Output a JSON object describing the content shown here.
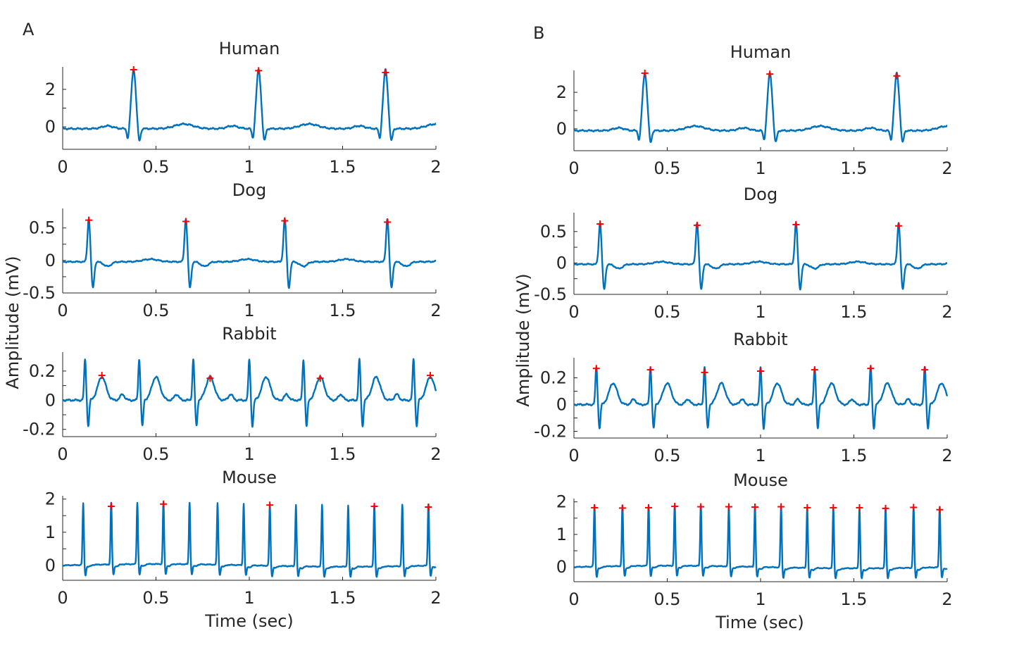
{
  "colors": {
    "trace": "#0072BD",
    "peak_marker": "#FF0000",
    "axes": "#262626"
  },
  "panels": [
    {
      "label": "A",
      "ylabel": "Amplitude (mV)",
      "xlabel": "Time (sec)"
    },
    {
      "label": "B",
      "ylabel": "Amplitude (mV)",
      "xlabel": "Time (sec)"
    }
  ],
  "chart_data": [
    {
      "type": "line",
      "panel": "A",
      "title": "Human",
      "xlim": [
        0,
        2
      ],
      "ylim": [
        -1.2,
        3.2
      ],
      "xticks": [
        0,
        0.5,
        1,
        1.5,
        2
      ],
      "xtick_labels": [
        "0",
        "0.5",
        "1",
        "1.5",
        "2"
      ],
      "yticks": [
        0,
        2
      ],
      "ytick_labels": [
        "0",
        "2"
      ],
      "beats": [
        0.38,
        1.05,
        1.73
      ],
      "peaks": [
        {
          "x": 0.38,
          "y": 3.05
        },
        {
          "x": 1.05,
          "y": 3.0
        },
        {
          "x": 1.73,
          "y": 2.9
        }
      ]
    },
    {
      "type": "line",
      "panel": "A",
      "title": "Dog",
      "xlim": [
        0,
        2
      ],
      "ylim": [
        -0.5,
        0.8
      ],
      "xticks": [
        0,
        0.5,
        1,
        1.5,
        2
      ],
      "xtick_labels": [
        "0",
        "0.5",
        "1",
        "1.5",
        "2"
      ],
      "yticks": [
        -0.5,
        0,
        0.5
      ],
      "ytick_labels": [
        "-0.5",
        "0",
        "0.5"
      ],
      "beats": [
        0.14,
        0.66,
        1.19,
        1.74
      ],
      "peaks": [
        {
          "x": 0.14,
          "y": 0.62
        },
        {
          "x": 0.66,
          "y": 0.6
        },
        {
          "x": 1.19,
          "y": 0.61
        },
        {
          "x": 1.74,
          "y": 0.59
        }
      ]
    },
    {
      "type": "line",
      "panel": "A",
      "title": "Rabbit",
      "xlim": [
        0,
        2
      ],
      "ylim": [
        -0.25,
        0.33
      ],
      "xticks": [
        0,
        0.5,
        1,
        1.5,
        2
      ],
      "xtick_labels": [
        "0",
        "0.5",
        "1",
        "1.5",
        "2"
      ],
      "yticks": [
        -0.2,
        0,
        0.2
      ],
      "ytick_labels": [
        "-0.2",
        "0",
        "0.2"
      ],
      "beats": [
        0.12,
        0.41,
        0.7,
        1.0,
        1.29,
        1.59,
        1.88
      ],
      "peaks": [
        {
          "x": 0.21,
          "y": 0.17
        },
        {
          "x": 0.79,
          "y": 0.15
        },
        {
          "x": 1.38,
          "y": 0.15
        },
        {
          "x": 1.97,
          "y": 0.17
        }
      ]
    },
    {
      "type": "line",
      "panel": "A",
      "title": "Mouse",
      "xlim": [
        0,
        2
      ],
      "ylim": [
        -0.45,
        2.1
      ],
      "xticks": [
        0,
        0.5,
        1,
        1.5,
        2
      ],
      "xtick_labels": [
        "0",
        "0.5",
        "1",
        "1.5",
        "2"
      ],
      "yticks": [
        0,
        1,
        2
      ],
      "ytick_labels": [
        "0",
        "1",
        "2"
      ],
      "beats": [
        0.11,
        0.26,
        0.4,
        0.54,
        0.68,
        0.83,
        0.97,
        1.11,
        1.25,
        1.39,
        1.53,
        1.67,
        1.82,
        1.96
      ],
      "peaks": [
        {
          "x": 0.26,
          "y": 1.78
        },
        {
          "x": 0.54,
          "y": 1.85
        },
        {
          "x": 1.11,
          "y": 1.82
        },
        {
          "x": 1.67,
          "y": 1.78
        },
        {
          "x": 1.96,
          "y": 1.76
        }
      ]
    },
    {
      "type": "line",
      "panel": "B",
      "title": "Human",
      "xlim": [
        0,
        2
      ],
      "ylim": [
        -1.2,
        3.2
      ],
      "xticks": [
        0,
        0.5,
        1,
        1.5,
        2
      ],
      "xtick_labels": [
        "0",
        "0.5",
        "1",
        "1.5",
        "2"
      ],
      "yticks": [
        0,
        2
      ],
      "ytick_labels": [
        "0",
        "2"
      ],
      "beats": [
        0.38,
        1.05,
        1.73
      ],
      "peaks": [
        {
          "x": 0.38,
          "y": 3.05
        },
        {
          "x": 1.05,
          "y": 3.0
        },
        {
          "x": 1.73,
          "y": 2.9
        }
      ]
    },
    {
      "type": "line",
      "panel": "B",
      "title": "Dog",
      "xlim": [
        0,
        2
      ],
      "ylim": [
        -0.5,
        0.8
      ],
      "xticks": [
        0,
        0.5,
        1,
        1.5,
        2
      ],
      "xtick_labels": [
        "0",
        "0.5",
        "1",
        "1.5",
        "2"
      ],
      "yticks": [
        -0.5,
        0,
        0.5
      ],
      "ytick_labels": [
        "-0.5",
        "0",
        "0.5"
      ],
      "beats": [
        0.14,
        0.66,
        1.19,
        1.74
      ],
      "peaks": [
        {
          "x": 0.14,
          "y": 0.62
        },
        {
          "x": 0.66,
          "y": 0.6
        },
        {
          "x": 1.19,
          "y": 0.61
        },
        {
          "x": 1.74,
          "y": 0.59
        }
      ]
    },
    {
      "type": "line",
      "panel": "B",
      "title": "Rabbit",
      "xlim": [
        0,
        2
      ],
      "ylim": [
        -0.25,
        0.35
      ],
      "xticks": [
        0,
        0.5,
        1,
        1.5,
        2
      ],
      "xtick_labels": [
        "0",
        "0.5",
        "1",
        "1.5",
        "2"
      ],
      "yticks": [
        -0.2,
        0,
        0.2
      ],
      "ytick_labels": [
        "-0.2",
        "0",
        "0.2"
      ],
      "beats": [
        0.12,
        0.41,
        0.7,
        1.0,
        1.29,
        1.59,
        1.88
      ],
      "peaks": [
        {
          "x": 0.12,
          "y": 0.27
        },
        {
          "x": 0.41,
          "y": 0.26
        },
        {
          "x": 0.7,
          "y": 0.24
        },
        {
          "x": 1.0,
          "y": 0.25
        },
        {
          "x": 1.29,
          "y": 0.26
        },
        {
          "x": 1.59,
          "y": 0.27
        },
        {
          "x": 1.88,
          "y": 0.26
        }
      ]
    },
    {
      "type": "line",
      "panel": "B",
      "title": "Mouse",
      "xlim": [
        0,
        2
      ],
      "ylim": [
        -0.45,
        2.1
      ],
      "xticks": [
        0,
        0.5,
        1,
        1.5,
        2
      ],
      "xtick_labels": [
        "0",
        "0.5",
        "1",
        "1.5",
        "2"
      ],
      "yticks": [
        0,
        1,
        2
      ],
      "ytick_labels": [
        "0",
        "1",
        "2"
      ],
      "beats": [
        0.11,
        0.26,
        0.4,
        0.54,
        0.68,
        0.83,
        0.97,
        1.11,
        1.25,
        1.39,
        1.53,
        1.67,
        1.82,
        1.96
      ],
      "peaks": [
        {
          "x": 0.11,
          "y": 1.82
        },
        {
          "x": 0.26,
          "y": 1.81
        },
        {
          "x": 0.4,
          "y": 1.82
        },
        {
          "x": 0.54,
          "y": 1.86
        },
        {
          "x": 0.68,
          "y": 1.85
        },
        {
          "x": 0.83,
          "y": 1.85
        },
        {
          "x": 0.97,
          "y": 1.84
        },
        {
          "x": 1.11,
          "y": 1.85
        },
        {
          "x": 1.25,
          "y": 1.82
        },
        {
          "x": 1.39,
          "y": 1.82
        },
        {
          "x": 1.53,
          "y": 1.82
        },
        {
          "x": 1.67,
          "y": 1.8
        },
        {
          "x": 1.82,
          "y": 1.83
        },
        {
          "x": 1.96,
          "y": 1.76
        }
      ]
    }
  ]
}
